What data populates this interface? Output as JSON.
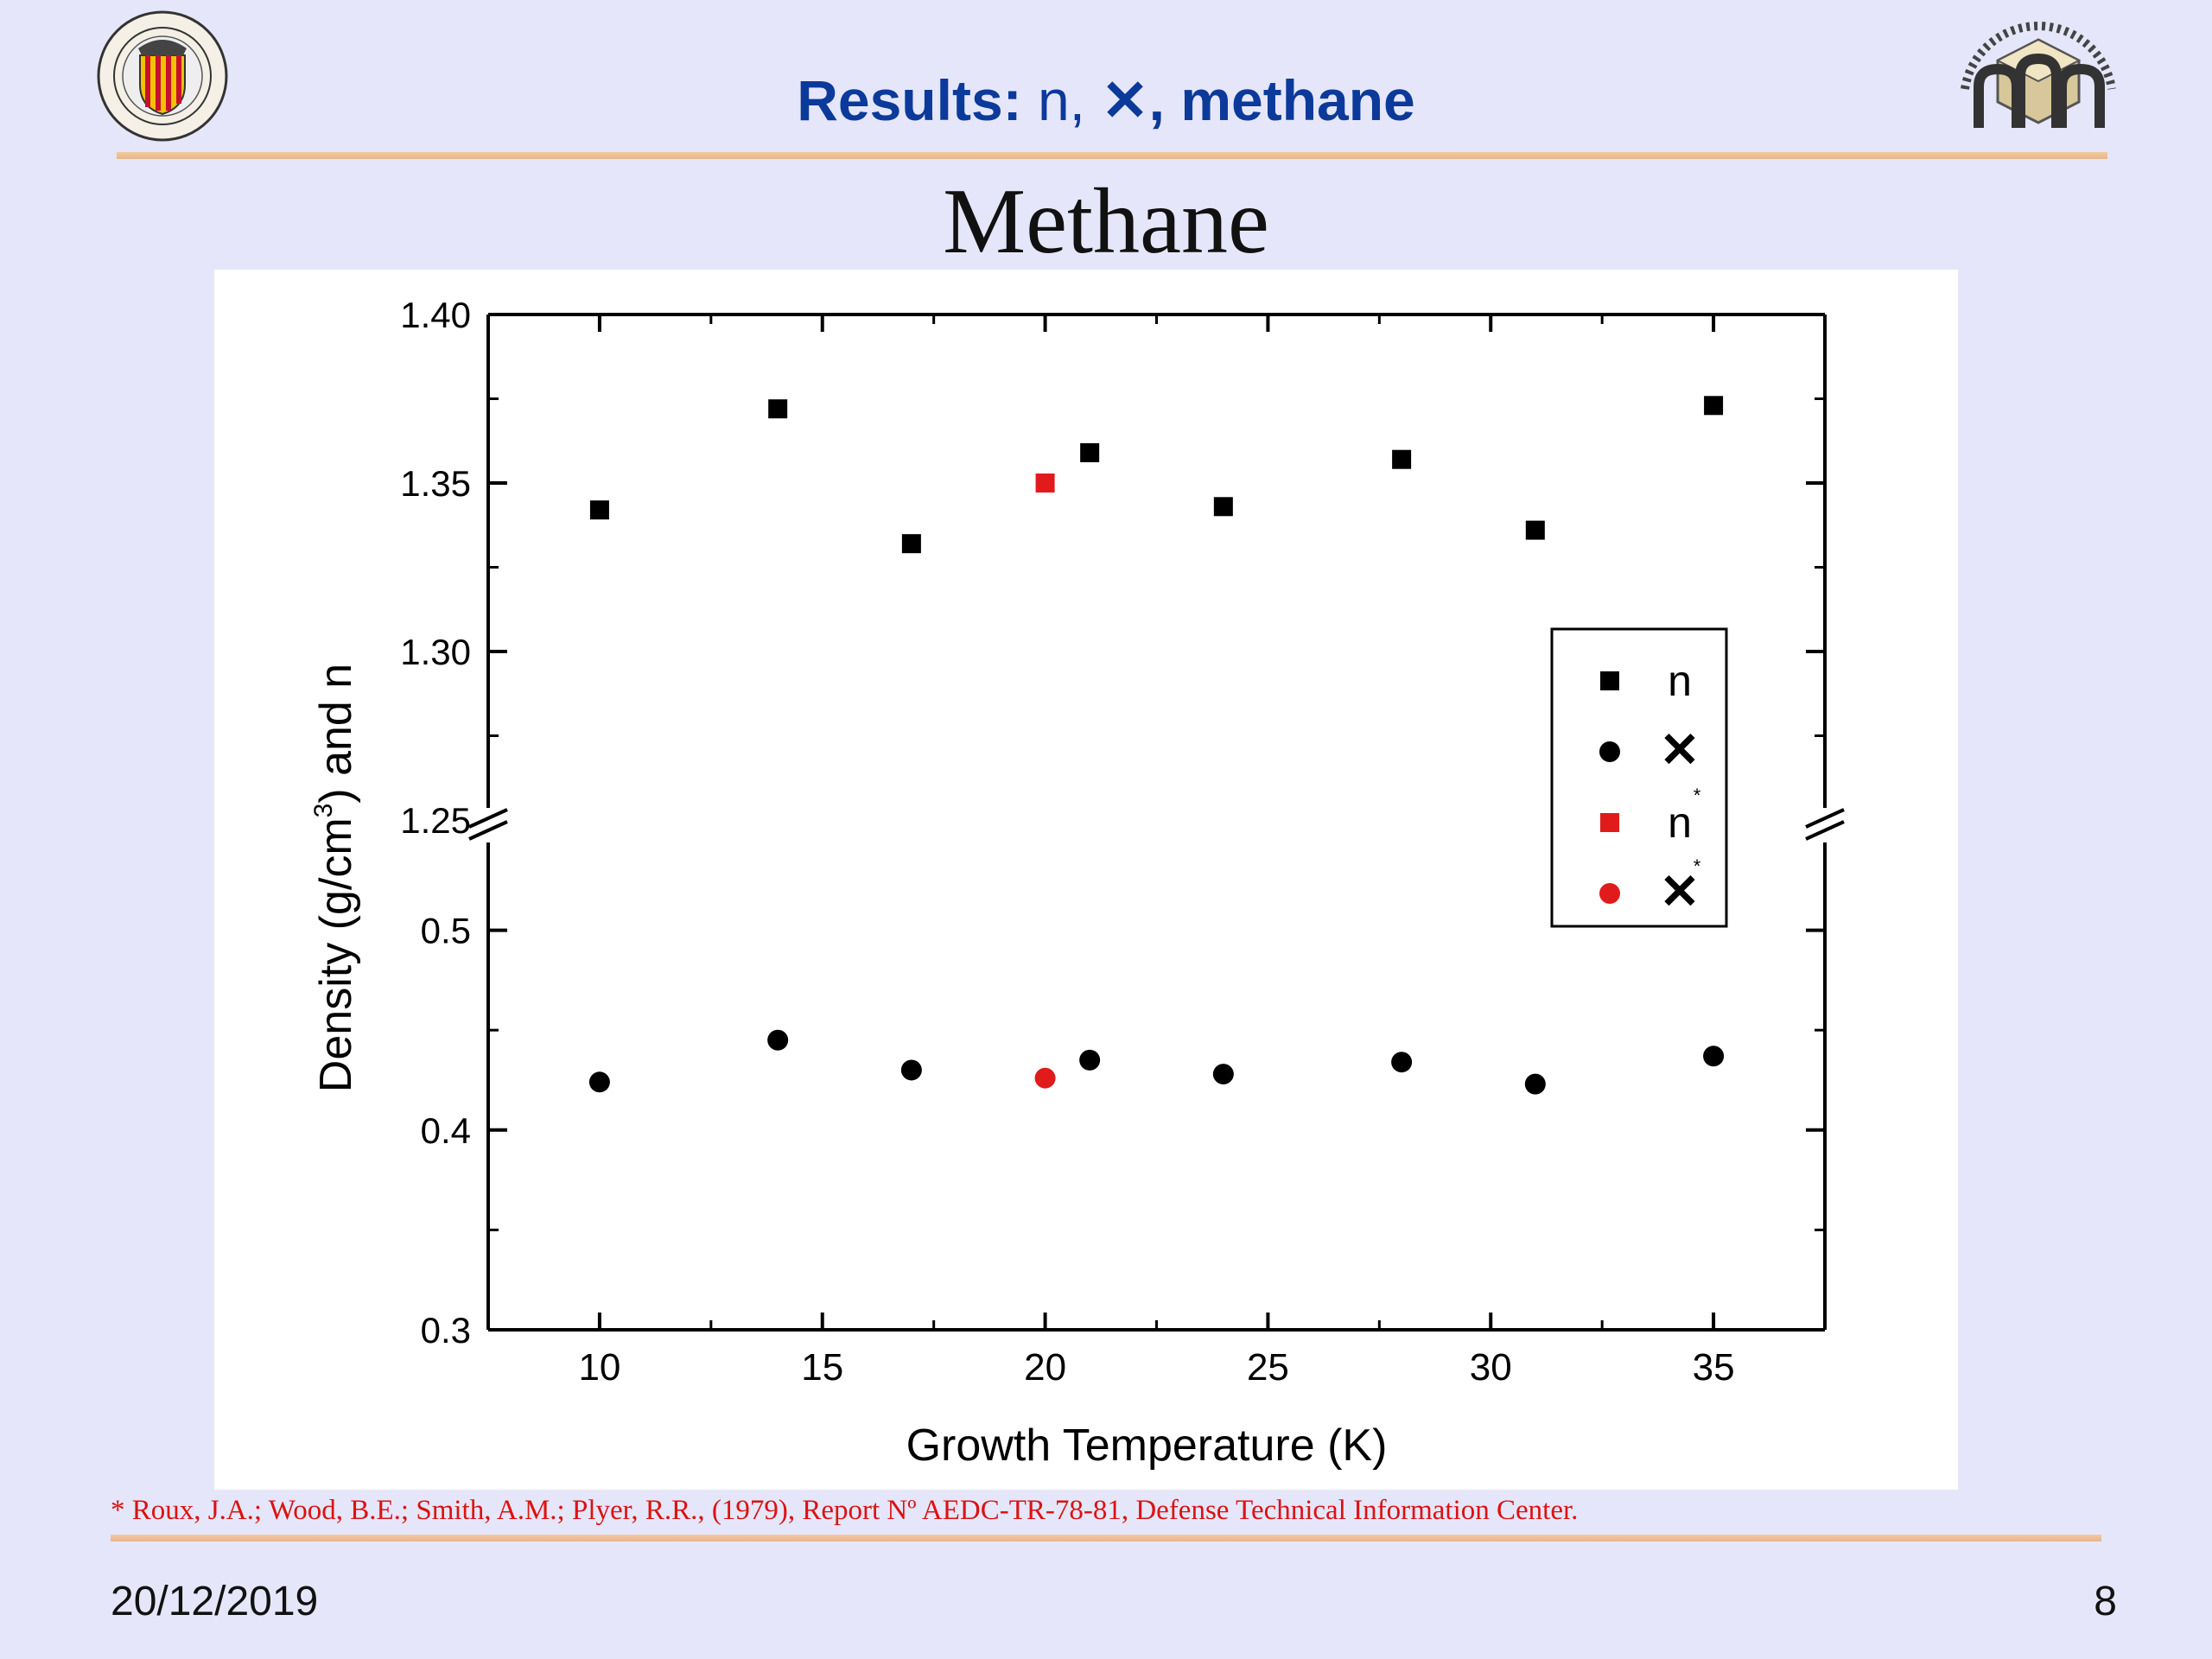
{
  "slide": {
    "title_label": "Results:",
    "title_n": "n,",
    "title_chi": "✕",
    "title_rest": ", methane",
    "heading": "Methane",
    "footnote": "* Roux, J.A.; Wood, B.E.; Smith, A.M.; Plyer, R.R., (1979), Report Nº AEDC-TR-78-81, Defense Technical Information Center.",
    "date": "20/12/2019",
    "page_number": "8",
    "colors": {
      "title": "#0b3a9a",
      "background": "#e6e6fa",
      "reference": "#e11b1b",
      "series": "#000000",
      "footnote": "#dd1111"
    }
  },
  "chart_data": {
    "type": "scatter",
    "xlabel": "Growth Temperature (K)",
    "ylabel": "Density (g/cm³) and n",
    "ylabel_parts": {
      "pre": "Density (g/cm",
      "sup": "3",
      "post": ") and n"
    },
    "xlim": [
      7.5,
      37.5
    ],
    "x_ticks": [
      10,
      15,
      20,
      25,
      30,
      35
    ],
    "broken_y_axis": true,
    "upper_panel": {
      "ylim": [
        1.25,
        1.4
      ],
      "ticks": [
        "1.25",
        "1.30",
        "1.35",
        "1.40"
      ]
    },
    "lower_panel": {
      "ylim": [
        0.3,
        0.55
      ],
      "ticks": [
        "0.3",
        "0.4",
        "0.5"
      ]
    },
    "legend_position": "right",
    "series": [
      {
        "name": "n",
        "marker": "square",
        "color": "#000000",
        "panel": "upper",
        "x": [
          10,
          14,
          17,
          21,
          24,
          28,
          31,
          35
        ],
        "y": [
          1.342,
          1.372,
          1.332,
          1.359,
          1.343,
          1.357,
          1.336,
          1.373
        ]
      },
      {
        "name": "χ",
        "legend_glyph": "✕",
        "marker": "circle",
        "color": "#000000",
        "panel": "lower",
        "x": [
          10,
          14,
          17,
          21,
          24,
          28,
          31,
          35
        ],
        "y": [
          0.424,
          0.445,
          0.43,
          0.435,
          0.428,
          0.434,
          0.423,
          0.437
        ]
      },
      {
        "name": "n*",
        "legend_glyph": "n",
        "legend_sup": "*",
        "marker": "square",
        "color": "#e11b1b",
        "panel": "upper",
        "x": [
          20
        ],
        "y": [
          1.35
        ]
      },
      {
        "name": "χ*",
        "legend_glyph": "✕",
        "legend_sup": "*",
        "marker": "circle",
        "color": "#e11b1b",
        "panel": "lower",
        "x": [
          20
        ],
        "y": [
          0.426
        ]
      }
    ]
  }
}
